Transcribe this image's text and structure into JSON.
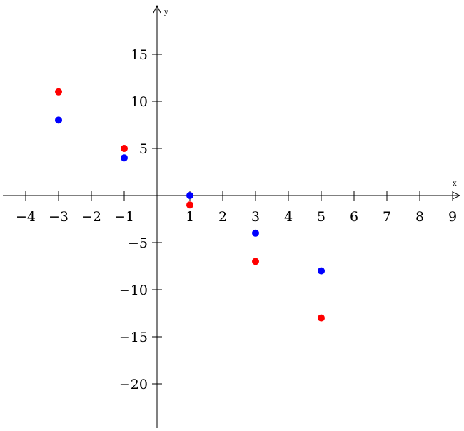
{
  "chart_data": {
    "type": "scatter",
    "xlabel": "x",
    "ylabel": "y",
    "xlim": [
      -4.7,
      9.2
    ],
    "ylim": [
      -24.7,
      20
    ],
    "grid": false,
    "x_ticks": [
      -4,
      -3,
      -2,
      -1,
      1,
      2,
      3,
      4,
      5,
      6,
      7,
      8,
      9
    ],
    "x_tick_labels": [
      "−4",
      "−3",
      "−2",
      "−1",
      "1",
      "2",
      "3",
      "4",
      "5",
      "6",
      "7",
      "8",
      "9"
    ],
    "y_ticks": [
      15,
      10,
      5,
      -5,
      -10,
      -15,
      -20
    ],
    "y_tick_labels": [
      "15",
      "10",
      "5",
      "−5",
      "−10",
      "−15",
      "−20"
    ],
    "series": [
      {
        "color": "#0000ff",
        "points": [
          {
            "x": -3,
            "y": 8
          },
          {
            "x": -1,
            "y": 4
          },
          {
            "x": 1,
            "y": 0
          },
          {
            "x": 3,
            "y": -4
          },
          {
            "x": 5,
            "y": -8
          }
        ]
      },
      {
        "color": "#ff0000",
        "points": [
          {
            "x": -3,
            "y": 11
          },
          {
            "x": -1,
            "y": 5
          },
          {
            "x": 1,
            "y": -1
          },
          {
            "x": 3,
            "y": -7
          },
          {
            "x": 5,
            "y": -13
          }
        ]
      }
    ]
  }
}
